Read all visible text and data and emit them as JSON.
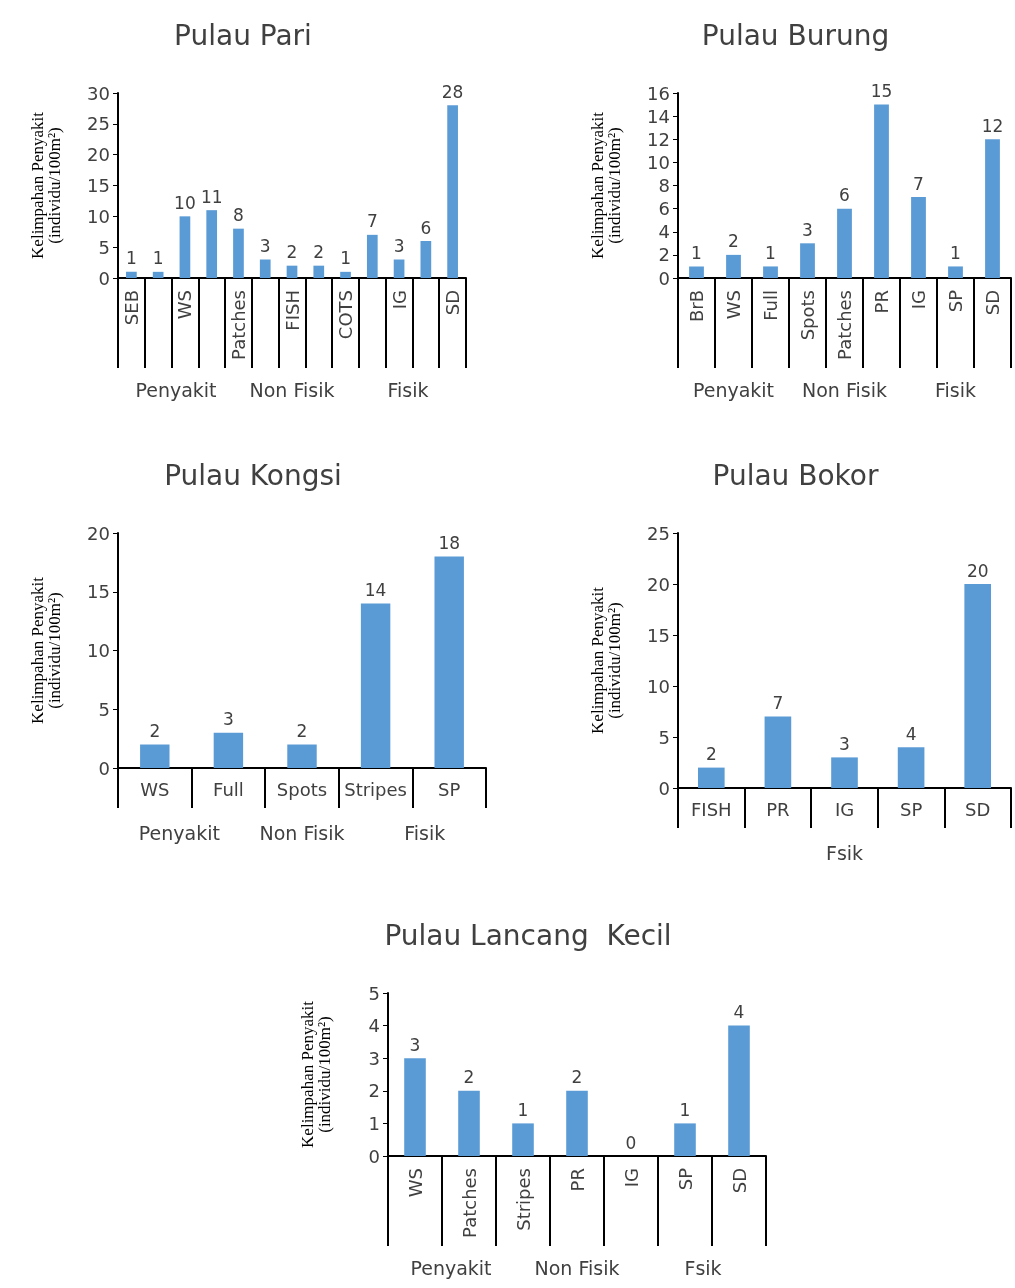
{
  "chart_data": [
    {
      "type": "bar",
      "title": "Pulau Pari",
      "ylabel": "Kelimpahan Penyakit\n(individu/100m²)",
      "categories": [
        "SEB",
        null,
        "WS",
        null,
        "Patches",
        null,
        "FISH",
        null,
        "COTS",
        null,
        "IG",
        null,
        "SD"
      ],
      "values": [
        1,
        1,
        10,
        11,
        8,
        3,
        2,
        2,
        1,
        7,
        3,
        6,
        28
      ],
      "color": "#5b9bd5",
      "ylim": [
        0,
        30
      ],
      "yticks": [
        0,
        5,
        10,
        15,
        20,
        25,
        30
      ],
      "data_labels": true,
      "grid": false,
      "annotations": [
        "Penyakit",
        "Non Fisik",
        "Fisik"
      ]
    },
    {
      "type": "bar",
      "title": "Pulau Burung",
      "ylabel": "Kelimpahan Penyakit\n(individu/100m²)",
      "categories": [
        "BrB",
        "WS",
        "Full",
        "Spots",
        "Patches",
        "PR",
        "IG",
        "SP",
        "SD"
      ],
      "values": [
        1,
        2,
        1,
        3,
        6,
        15,
        7,
        1,
        12
      ],
      "color": "#5b9bd5",
      "ylim": [
        0,
        16
      ],
      "yticks": [
        0,
        2,
        4,
        6,
        8,
        10,
        12,
        14,
        16
      ],
      "data_labels": true,
      "grid": false,
      "annotations": [
        "Penyakit",
        "Non Fisik",
        "Fisik"
      ]
    },
    {
      "type": "bar",
      "title": "Pulau Kongsi",
      "ylabel": "Kelimpahan Penyakit\n(individu/100m²)",
      "categories": [
        "WS",
        "Full",
        "Spots",
        "Stripes",
        "SP"
      ],
      "values": [
        2,
        3,
        2,
        14,
        18
      ],
      "color": "#5b9bd5",
      "ylim": [
        0,
        20
      ],
      "yticks": [
        0,
        5,
        10,
        15,
        20
      ],
      "data_labels": true,
      "grid": false,
      "annotations": [
        "Penyakit",
        "Non Fisik",
        "Fisik"
      ]
    },
    {
      "type": "bar",
      "title": "Pulau Bokor",
      "ylabel": "Kelimpahan Penyakit\n(individu/100m²)",
      "categories": [
        "FISH",
        "PR",
        "IG",
        "SP",
        "SD"
      ],
      "values": [
        2,
        7,
        3,
        4,
        20
      ],
      "color": "#5b9bd5",
      "ylim": [
        0,
        25
      ],
      "yticks": [
        0,
        5,
        10,
        15,
        20,
        25
      ],
      "data_labels": true,
      "grid": false,
      "annotations": [
        "Fsik"
      ]
    },
    {
      "type": "bar",
      "title": "Pulau Lancang  Kecil",
      "ylabel": "Kelimpahan Penyakit\n(individu/100m²)",
      "categories": [
        "WS",
        "Patches",
        "Stripes",
        "PR",
        "IG",
        "SP",
        "SD"
      ],
      "values": [
        3,
        2,
        1,
        2,
        0,
        1,
        4
      ],
      "color": "#5b9bd5",
      "ylim": [
        0,
        5
      ],
      "yticks": [
        0,
        1,
        2,
        3,
        4,
        5
      ],
      "data_labels": true,
      "grid": false,
      "annotations": [
        "Penyakit",
        "Non Fisik",
        "Fsik"
      ]
    }
  ]
}
